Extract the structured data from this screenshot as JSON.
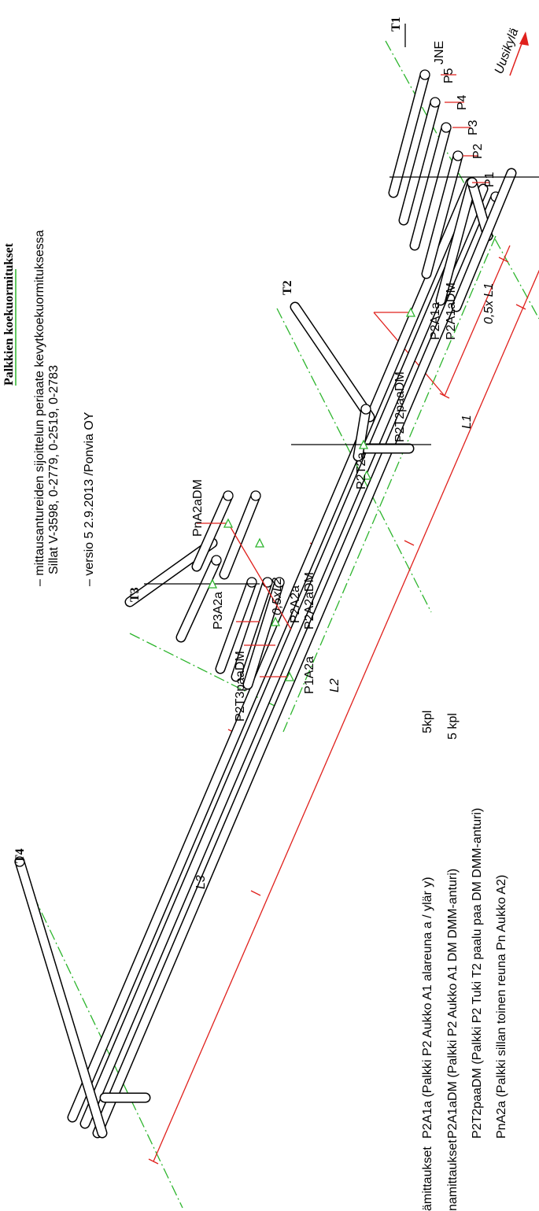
{
  "title": "Palkkien koekuormitukset",
  "notes": [
    "– mittausantureiden sijoittelun periaate kevytkoekuormituksessa",
    "Sillat V-3598, 0-2779, 0-2519, 0-2783",
    "– versio 5 2.9.2013 /Ponvia OY"
  ],
  "supports": [
    "T1",
    "T2",
    "T3",
    "T4"
  ],
  "direction": "Uusikylä",
  "beam_labels": [
    "JNE",
    "P5",
    "P4",
    "P3",
    "P2",
    "P1"
  ],
  "sensor_labels": [
    "P2A1a",
    "P2A1aDM",
    "P2T2paaDM",
    "P2T2a",
    "PnA2aDM",
    "P3A2a",
    "P2A2a",
    "P2A2aDM",
    "P1A2a",
    "P2T3paaDM"
  ],
  "dimensions": [
    "0,5x L1",
    "L1",
    "0,5xL2",
    "L2",
    "L3"
  ],
  "legend": {
    "categories": [
      "ämittaukset",
      "namittaukset"
    ],
    "items": [
      "P2A1a (Palkki P2 Aukko A1 alareuna a / ylär y)",
      "P2A1aDM (Palkki P2 Aukko A1 DM DMM-anturi)",
      "P2T2paaDM (Palkki P2 Tuki T2 paalu paa DM DMM-anturi)",
      "PnA2a (Palkki sillan toinen reuna Pn Aukko A2)"
    ],
    "counts": [
      "5kpl",
      "5 kpl"
    ]
  }
}
